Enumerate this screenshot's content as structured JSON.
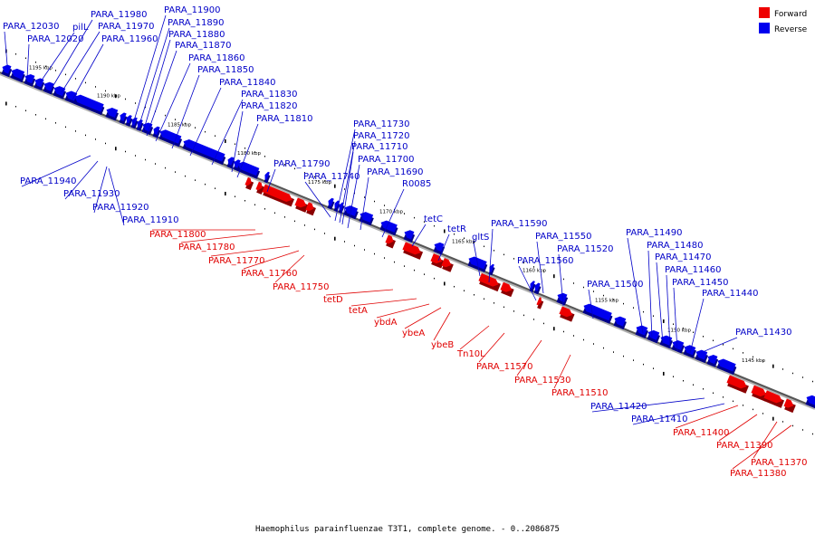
{
  "caption": "Haemophilus parainfluenzae T3T1, complete genome. - 0..2086875",
  "legend": [
    {
      "label": "Forward",
      "color": "#ee0000"
    },
    {
      "label": "Reverse",
      "color": "#0000ee"
    }
  ],
  "ticks": [
    "1195 kbp",
    "1190 kbp",
    "1185 kbp",
    "1180 kbp",
    "1175 kbp",
    "1170 kbp",
    "1165 kbp",
    "1160 kbp",
    "1155 kbp",
    "1150 kbp",
    "1145 kbp"
  ],
  "labels": {
    "reverse_top": [
      "PARA_12030",
      "PARA_12020",
      "pilL",
      "PARA_11980",
      "PARA_11970",
      "PARA_11960",
      "PARA_11900",
      "PARA_11890",
      "PARA_11880",
      "PARA_11870",
      "PARA_11860",
      "PARA_11850",
      "PARA_11840",
      "PARA_11830",
      "PARA_11820",
      "PARA_11810",
      "PARA_11790",
      "PARA_11740",
      "PARA_11730",
      "PARA_11720",
      "PARA_11710",
      "PARA_11700",
      "PARA_11690",
      "R0085",
      "tetC",
      "tetR",
      "gltS",
      "PARA_11590",
      "PARA_11550",
      "PARA_11560",
      "PARA_11520",
      "PARA_11500",
      "PARA_11490",
      "PARA_11480",
      "PARA_11470",
      "PARA_11460",
      "PARA_11450",
      "PARA_11440",
      "PARA_11430"
    ],
    "reverse_bottom": [
      "PARA_11940",
      "PARA_11930",
      "PARA_11920",
      "PARA_11910",
      "PARA_11420",
      "PARA_11410"
    ],
    "forward": [
      "PARA_11800",
      "PARA_11780",
      "PARA_11770",
      "PARA_11760",
      "PARA_11750",
      "tetD",
      "tetA",
      "ybdA",
      "ybeA",
      "ybeB",
      "Tn10L",
      "PARA_11570",
      "PARA_11530",
      "PARA_11510",
      "PARA_11400",
      "PARA_11390",
      "PARA_11370",
      "PARA_11380"
    ]
  }
}
